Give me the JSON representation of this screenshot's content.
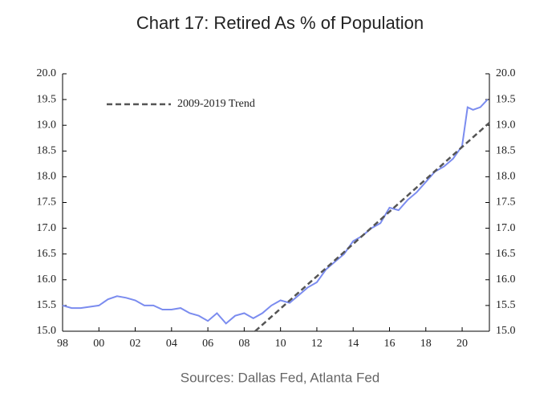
{
  "chart_data": {
    "type": "line",
    "title": "Chart 17: Retired As % of Population",
    "source": "Sources: Dallas Fed, Atlanta Fed",
    "legend": "upper left",
    "xlim": [
      1998,
      2021.5
    ],
    "xticks": [
      {
        "value": 1998,
        "label": "98"
      },
      {
        "value": 2000,
        "label": "00"
      },
      {
        "value": 2002,
        "label": "02"
      },
      {
        "value": 2004,
        "label": "04"
      },
      {
        "value": 2006,
        "label": "06"
      },
      {
        "value": 2008,
        "label": "08"
      },
      {
        "value": 2010,
        "label": "10"
      },
      {
        "value": 2012,
        "label": "12"
      },
      {
        "value": 2014,
        "label": "14"
      },
      {
        "value": 2016,
        "label": "16"
      },
      {
        "value": 2018,
        "label": "18"
      },
      {
        "value": 2020,
        "label": "20"
      }
    ],
    "ylim": [
      15,
      20
    ],
    "yticks": [
      {
        "value": 15,
        "label": "15.0"
      },
      {
        "value": 15.5,
        "label": "15.5"
      },
      {
        "value": 16,
        "label": "16.0"
      },
      {
        "value": 16.5,
        "label": "16.5"
      },
      {
        "value": 17,
        "label": "17.0"
      },
      {
        "value": 17.5,
        "label": "17.5"
      },
      {
        "value": 18,
        "label": "18.0"
      },
      {
        "value": 18.5,
        "label": "18.5"
      },
      {
        "value": 19,
        "label": "19.0"
      },
      {
        "value": 19.5,
        "label": "19.5"
      },
      {
        "value": 20,
        "label": "20.0"
      }
    ],
    "y2lim": [
      15,
      20
    ],
    "y2ticks": [
      {
        "value": 15,
        "label": "15.0"
      },
      {
        "value": 15.5,
        "label": "15.5"
      },
      {
        "value": 16,
        "label": "16.0"
      },
      {
        "value": 16.5,
        "label": "16.5"
      },
      {
        "value": 17,
        "label": "17.0"
      },
      {
        "value": 17.5,
        "label": "17.5"
      },
      {
        "value": 18,
        "label": "18.0"
      },
      {
        "value": 18.5,
        "label": "18.5"
      },
      {
        "value": 19,
        "label": "19.0"
      },
      {
        "value": 19.5,
        "label": "19.5"
      },
      {
        "value": 20,
        "label": "20.0"
      }
    ],
    "series": [
      {
        "color": "#7b8cef",
        "x": [
          1998,
          1998.5,
          1999,
          2000,
          2000.5,
          2001,
          2001.5,
          2002,
          2002.5,
          2003,
          2003.5,
          2004,
          2004.5,
          2005,
          2005.5,
          2006,
          2006.5,
          2007,
          2007.5,
          2008,
          2008.5,
          2009,
          2009.5,
          2010,
          2010.5,
          2011,
          2011.5,
          2012,
          2012.5,
          2013,
          2013.5,
          2014,
          2014.5,
          2015,
          2015.5,
          2016,
          2016.5,
          2017,
          2017.5,
          2018,
          2018.5,
          2019,
          2019.5,
          2020,
          2020.3,
          2020.6,
          2021,
          2021.4
        ],
        "values": [
          15.5,
          15.45,
          15.45,
          15.5,
          15.62,
          15.68,
          15.65,
          15.6,
          15.5,
          15.5,
          15.42,
          15.42,
          15.45,
          15.35,
          15.3,
          15.2,
          15.35,
          15.15,
          15.3,
          15.35,
          15.25,
          15.35,
          15.5,
          15.6,
          15.55,
          15.7,
          15.85,
          15.95,
          16.2,
          16.35,
          16.5,
          16.75,
          16.85,
          17.0,
          17.1,
          17.4,
          17.35,
          17.55,
          17.7,
          17.9,
          18.1,
          18.2,
          18.35,
          18.6,
          19.35,
          19.3,
          19.35,
          19.5
        ]
      },
      {
        "name": "2009-2019 Trend",
        "color": "#555555",
        "dashed": true,
        "x": [
          2008.6,
          2021.5
        ],
        "values": [
          15.0,
          19.05
        ]
      }
    ]
  }
}
